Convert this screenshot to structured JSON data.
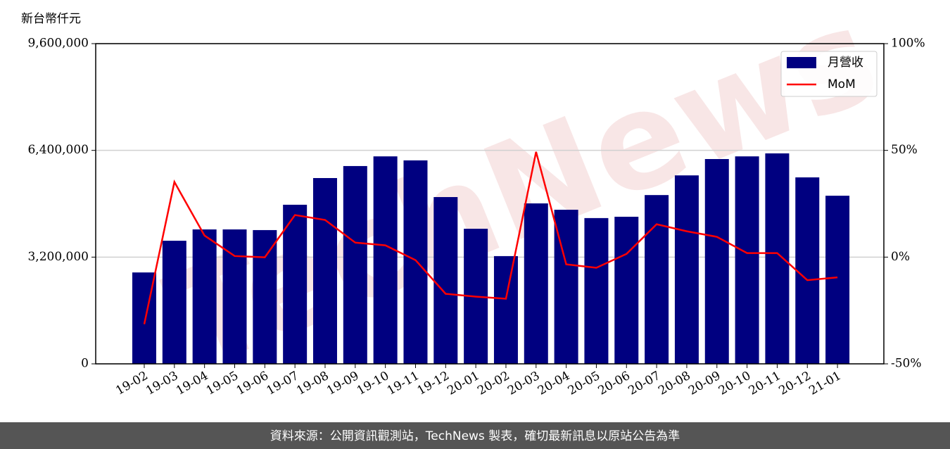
{
  "chart_data": {
    "type": "bar",
    "y_label": "新台幣仟元",
    "watermark": "TechNews",
    "footer": "資料來源：公開資訊觀測站，TechNews 製表，確切最新訊息以原站公告為準",
    "categories": [
      "19-02",
      "19-03",
      "19-04",
      "19-05",
      "19-06",
      "19-07",
      "19-08",
      "19-09",
      "19-10",
      "19-11",
      "19-12",
      "20-01",
      "20-02",
      "20-03",
      "20-04",
      "20-05",
      "20-06",
      "20-07",
      "20-08",
      "20-09",
      "20-10",
      "20-11",
      "20-12",
      "21-01"
    ],
    "series": [
      {
        "name": "月營收",
        "color": "#000080",
        "type": "bar",
        "values": [
          2740000,
          3690000,
          4030000,
          4030000,
          4010000,
          4770000,
          5570000,
          5930000,
          6220000,
          6100000,
          5000000,
          4050000,
          3230000,
          4810000,
          4620000,
          4370000,
          4410000,
          5060000,
          5650000,
          6140000,
          6220000,
          6310000,
          5590000,
          5040000
        ]
      },
      {
        "name": "MoM",
        "color": "#ff0000",
        "type": "line",
        "axis": "y2",
        "values": [
          -31.4,
          35.2,
          10.1,
          0.5,
          -0.1,
          19.7,
          17.4,
          6.8,
          5.5,
          -1.4,
          -17.2,
          -18.5,
          -19.5,
          49.3,
          -3.4,
          -5.0,
          1.5,
          15.4,
          12.1,
          9.5,
          1.9,
          1.9,
          -10.8,
          -9.5
        ]
      }
    ],
    "ylim": [
      0,
      9600000
    ],
    "yticks": [
      0,
      {
        "value": 3200000,
        "label": "3,200,000"
      },
      {
        "value": 6400000,
        "label": "6,400,000"
      },
      {
        "value": 9600000,
        "label": "9,600,000"
      }
    ],
    "y2lim": [
      -50,
      100
    ],
    "y2ticks": [
      {
        "value": -50,
        "label": "-50%"
      },
      {
        "value": 0,
        "label": "0%"
      },
      {
        "value": 50,
        "label": "50%"
      },
      {
        "value": 100,
        "label": "100%"
      }
    ],
    "grid": true,
    "legend": "upper right"
  }
}
